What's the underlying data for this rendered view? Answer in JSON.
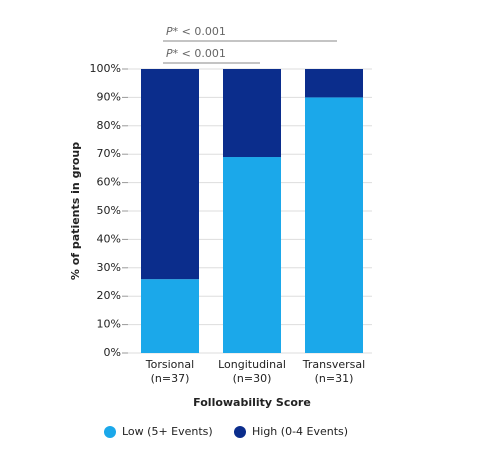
{
  "chart_data": {
    "type": "stacked-bar",
    "categories": [
      "Torsional",
      "Longitudinal",
      "Transversal"
    ],
    "category_counts": [
      "(n=37)",
      "(n=30)",
      "(n=31)"
    ],
    "series": [
      {
        "name": "Low (5+ Events)",
        "color": "#1ba8ea",
        "values": [
          26,
          69,
          90
        ]
      },
      {
        "name": "High (0-4 Events)",
        "color": "#0b2d8c",
        "values": [
          74,
          31,
          10
        ]
      }
    ],
    "ylim": [
      0,
      100
    ],
    "yticks": [
      {
        "value": 0,
        "label": "0%"
      },
      {
        "value": 10,
        "label": "10%"
      },
      {
        "value": 20,
        "label": "20%"
      },
      {
        "value": 30,
        "label": "30%"
      },
      {
        "value": 40,
        "label": "40%"
      },
      {
        "value": 50,
        "label": "50%"
      },
      {
        "value": 60,
        "label": "60%"
      },
      {
        "value": 70,
        "label": "70%"
      },
      {
        "value": 80,
        "label": "80%"
      },
      {
        "value": 90,
        "label": "90%"
      },
      {
        "value": 100,
        "label": "100%"
      }
    ],
    "ylabel": "% of patients in group",
    "xlabel": "Followability Score",
    "annotations": [
      "P* < 0.001",
      "P* < 0.001"
    ],
    "grid": true
  }
}
